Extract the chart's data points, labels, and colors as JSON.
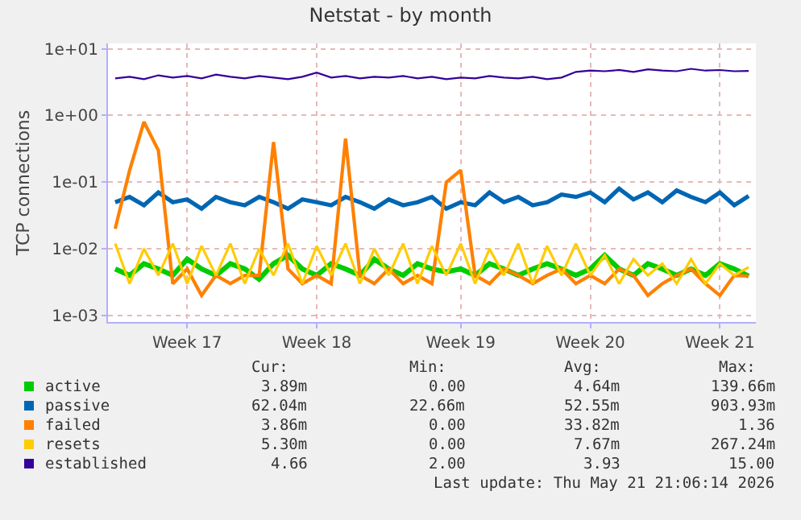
{
  "chart_data": {
    "type": "line",
    "title": "Netstat - by month",
    "ylabel": "TCP connections",
    "log": "y",
    "grid": true,
    "legend": "bottom left",
    "marker": "none",
    "line_style": "solid",
    "ylim": [
      0.0008,
      12
    ],
    "yticks": [
      {
        "value": 0.001,
        "label": "1e-03"
      },
      {
        "value": 0.01,
        "label": "1e-02"
      },
      {
        "value": 0.1,
        "label": "1e-01"
      },
      {
        "value": 1,
        "label": "1e+00"
      },
      {
        "value": 10,
        "label": "1e+01"
      }
    ],
    "categories": [
      null,
      null,
      null,
      null,
      null,
      "Week 17",
      null,
      null,
      null,
      null,
      null,
      null,
      null,
      null,
      "Week 18",
      null,
      null,
      null,
      null,
      null,
      null,
      null,
      null,
      null,
      "Week 19",
      null,
      null,
      null,
      null,
      null,
      null,
      null,
      null,
      "Week 20",
      null,
      null,
      null,
      null,
      null,
      null,
      null,
      null,
      "Week 21",
      null,
      null
    ],
    "series": [
      {
        "name": "active",
        "color": "#00cc00",
        "values": [
          0.005,
          0.004,
          0.006,
          0.005,
          0.004,
          0.007,
          0.005,
          0.004,
          0.006,
          0.005,
          0.0035,
          0.006,
          0.008,
          0.005,
          0.004,
          0.006,
          0.005,
          0.004,
          0.007,
          0.005,
          0.004,
          0.006,
          0.005,
          0.0045,
          0.005,
          0.004,
          0.006,
          0.005,
          0.004,
          0.005,
          0.006,
          0.005,
          0.004,
          0.005,
          0.008,
          0.005,
          0.004,
          0.006,
          0.005,
          0.004,
          0.005,
          0.004,
          0.006,
          0.005,
          0.0039
        ]
      },
      {
        "name": "passive",
        "color": "#0066b3",
        "values": [
          0.05,
          0.06,
          0.045,
          0.07,
          0.05,
          0.055,
          0.04,
          0.06,
          0.05,
          0.045,
          0.06,
          0.05,
          0.04,
          0.055,
          0.05,
          0.045,
          0.06,
          0.05,
          0.04,
          0.055,
          0.045,
          0.05,
          0.06,
          0.04,
          0.05,
          0.045,
          0.07,
          0.05,
          0.06,
          0.045,
          0.05,
          0.065,
          0.06,
          0.07,
          0.05,
          0.08,
          0.055,
          0.07,
          0.05,
          0.075,
          0.06,
          0.05,
          0.07,
          0.045,
          0.062
        ]
      },
      {
        "name": "failed",
        "color": "#ff8000",
        "values": [
          0.02,
          0.15,
          0.8,
          0.3,
          0.003,
          0.005,
          0.002,
          0.004,
          0.003,
          0.004,
          0.004,
          0.4,
          0.005,
          0.003,
          0.004,
          0.003,
          0.45,
          0.004,
          0.003,
          0.005,
          0.003,
          0.004,
          0.003,
          0.1,
          0.15,
          0.004,
          0.003,
          0.005,
          0.004,
          0.003,
          0.004,
          0.005,
          0.003,
          0.004,
          0.003,
          0.005,
          0.004,
          0.002,
          0.003,
          0.004,
          0.005,
          0.003,
          0.002,
          0.004,
          0.0039
        ]
      },
      {
        "name": "resets",
        "color": "#ffcc00",
        "values": [
          0.012,
          0.003,
          0.01,
          0.004,
          0.012,
          0.003,
          0.011,
          0.004,
          0.012,
          0.003,
          0.01,
          0.004,
          0.012,
          0.003,
          0.011,
          0.004,
          0.012,
          0.003,
          0.01,
          0.004,
          0.012,
          0.003,
          0.011,
          0.004,
          0.012,
          0.003,
          0.01,
          0.004,
          0.012,
          0.003,
          0.011,
          0.004,
          0.012,
          0.004,
          0.008,
          0.003,
          0.007,
          0.004,
          0.006,
          0.003,
          0.007,
          0.003,
          0.006,
          0.004,
          0.0053
        ]
      },
      {
        "name": "established",
        "color": "#330099",
        "values": [
          3.6,
          3.8,
          3.5,
          4.0,
          3.7,
          3.9,
          3.6,
          4.1,
          3.8,
          3.6,
          3.9,
          3.7,
          3.5,
          3.8,
          4.4,
          3.7,
          3.9,
          3.6,
          3.8,
          3.7,
          3.9,
          3.6,
          3.8,
          3.5,
          3.7,
          3.6,
          3.9,
          3.7,
          3.6,
          3.8,
          3.5,
          3.7,
          4.5,
          4.7,
          4.6,
          4.8,
          4.5,
          4.9,
          4.7,
          4.6,
          5.0,
          4.7,
          4.8,
          4.6,
          4.66
        ]
      }
    ],
    "annotations": [
      "Cur:",
      "Min:",
      "Avg:",
      "Max:",
      "3.89m",
      "0.00",
      "4.64m",
      "139.66m",
      "62.04m",
      "22.66m",
      "52.55m",
      "903.93m",
      "3.86m",
      "0.00",
      "33.82m",
      "1.36",
      "5.30m",
      "0.00",
      "7.67m",
      "267.24m",
      "4.66",
      "2.00",
      "3.93",
      "15.00",
      "Last update: Thu May 21 21:06:14 2026"
    ]
  }
}
